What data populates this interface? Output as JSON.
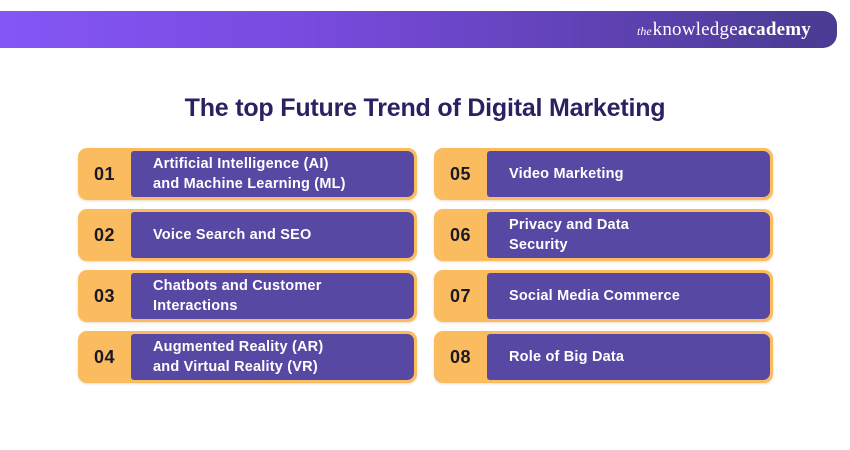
{
  "header": {
    "logo": {
      "prefix": "the",
      "word1": "knowledge",
      "word2": "academy"
    },
    "gradient_left": "#8456F5",
    "gradient_right": "#4A3B92"
  },
  "title": "The top Future Trend of Digital Marketing",
  "colors": {
    "accent_orange": "#FBBC60",
    "box_purple": "#5748A3",
    "title_navy": "#2B2161",
    "number_dark": "#191927",
    "text_white": "#FFFFFF"
  },
  "items": [
    {
      "number": "01",
      "label": "Artificial Intelligence (AI)\nand Machine Learning (ML)"
    },
    {
      "number": "02",
      "label": "Voice Search and SEO"
    },
    {
      "number": "03",
      "label": "Chatbots and Customer\nInteractions"
    },
    {
      "number": "04",
      "label": "Augmented Reality (AR)\nand Virtual Reality (VR)"
    },
    {
      "number": "05",
      "label": "Video Marketing"
    },
    {
      "number": "06",
      "label": "Privacy and Data\nSecurity"
    },
    {
      "number": "07",
      "label": "Social Media Commerce"
    },
    {
      "number": "08",
      "label": "Role of Big Data"
    }
  ]
}
